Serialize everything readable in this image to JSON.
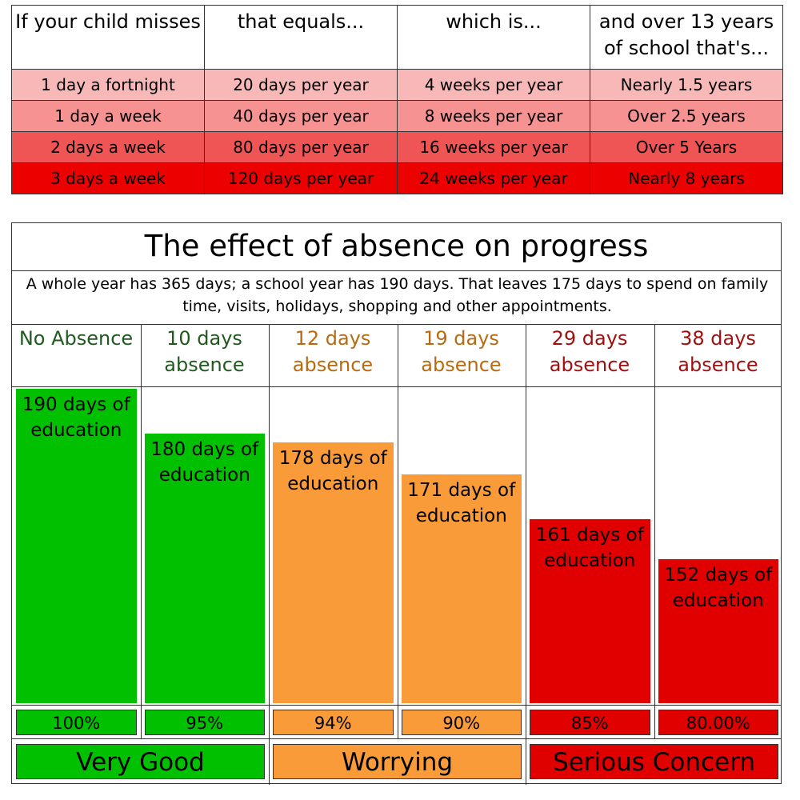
{
  "table": {
    "headers": [
      "If your child misses",
      "that equals...",
      "which is...",
      "and over 13 years of school that's..."
    ],
    "rows": [
      [
        "1 day a fortnight",
        "20 days per year",
        "4 weeks per year",
        "Nearly 1.5 years"
      ],
      [
        "1 day a week",
        "40 days per year",
        "8 weeks per year",
        "Over 2.5 years"
      ],
      [
        "2 days a week",
        "80 days per year",
        "16 weeks per year",
        "Over 5 Years"
      ],
      [
        "3 days a week",
        "120 days per year",
        "24 weeks per year",
        "Nearly 8 years"
      ]
    ],
    "row_colors": [
      "#f9b8b8",
      "#f69292",
      "#f05555",
      "#ec0000"
    ]
  },
  "colors": {
    "green": "#00c000",
    "orange": "#fa9b3a",
    "red": "#e00000",
    "green_text": "#1f5a1f",
    "orange_text": "#b86a10",
    "red_text": "#a01010"
  },
  "chart_data": {
    "type": "bar",
    "title": "The effect of absence on progress",
    "subtitle": "A whole year has 365 days; a school year has 190 days.  That leaves 175 days to spend on family time, visits, holidays, shopping and other appointments.",
    "ylim": [
      0,
      190
    ],
    "columns": [
      {
        "header": "No Absence",
        "days": 190,
        "bar_label": "190 days of education",
        "percent": "100%",
        "category": "green"
      },
      {
        "header": "10 days absence",
        "days": 180,
        "bar_label": "180 days of education",
        "percent": "95%",
        "category": "green"
      },
      {
        "header": "12 days absence",
        "days": 178,
        "bar_label": "178 days of education",
        "percent": "94%",
        "category": "orange"
      },
      {
        "header": "19 days absence",
        "days": 171,
        "bar_label": "171 days of education",
        "percent": "90%",
        "category": "orange"
      },
      {
        "header": "29 days absence",
        "days": 161,
        "bar_label": "161 days of education",
        "percent": "85%",
        "category": "red"
      },
      {
        "header": "38 days absence",
        "days": 152,
        "bar_label": "152 days of education",
        "percent": "80.00%",
        "category": "red"
      }
    ],
    "bands": [
      {
        "label": "Very Good",
        "category": "green",
        "span": [
          0,
          1
        ]
      },
      {
        "label": "Worrying",
        "category": "orange",
        "span": [
          2,
          3
        ]
      },
      {
        "label": "Serious Concern",
        "category": "red",
        "span": [
          4,
          5
        ]
      }
    ]
  }
}
